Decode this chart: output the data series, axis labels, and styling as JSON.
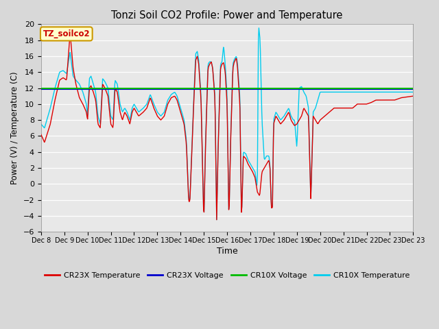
{
  "title": "Tonzi Soil CO2 Profile: Power and Temperature",
  "xlabel": "Time",
  "ylabel": "Power (V) / Temperature (C)",
  "ylim": [
    -6,
    20
  ],
  "yticks": [
    -6,
    -4,
    -2,
    0,
    2,
    4,
    6,
    8,
    10,
    12,
    14,
    16,
    18,
    20
  ],
  "fig_bg_color": "#d8d8d8",
  "plot_bg_color": "#e8e8e8",
  "label_box_text": "TZ_soilco2",
  "label_box_bg": "#ffffcc",
  "label_box_border": "#cc9900",
  "label_box_text_color": "#cc0000",
  "cr23x_temp_color": "#dd0000",
  "cr23x_volt_color": "#0000cc",
  "cr10x_volt_color": "#00bb00",
  "cr10x_temp_color": "#00ccee",
  "cr23x_volt_value": 11.85,
  "cr10x_volt_value": 11.97,
  "legend_entries": [
    "CR23X Temperature",
    "CR23X Voltage",
    "CR10X Voltage",
    "CR10X Temperature"
  ],
  "keypoints_cr23x": [
    [
      0.0,
      6.2
    ],
    [
      0.15,
      5.2
    ],
    [
      0.4,
      7.5
    ],
    [
      0.6,
      10.5
    ],
    [
      0.8,
      13.0
    ],
    [
      0.95,
      13.3
    ],
    [
      1.1,
      13.0
    ],
    [
      1.25,
      19.0
    ],
    [
      1.38,
      14.5
    ],
    [
      1.5,
      12.5
    ],
    [
      1.65,
      10.8
    ],
    [
      1.8,
      10.0
    ],
    [
      1.95,
      9.0
    ],
    [
      2.0,
      8.0
    ],
    [
      2.08,
      12.0
    ],
    [
      2.15,
      12.3
    ],
    [
      2.25,
      11.5
    ],
    [
      2.35,
      10.5
    ],
    [
      2.45,
      7.5
    ],
    [
      2.55,
      7.0
    ],
    [
      2.65,
      12.5
    ],
    [
      2.75,
      12.0
    ],
    [
      2.88,
      11.0
    ],
    [
      3.0,
      7.5
    ],
    [
      3.1,
      7.0
    ],
    [
      3.18,
      12.0
    ],
    [
      3.28,
      11.5
    ],
    [
      3.4,
      9.0
    ],
    [
      3.5,
      8.0
    ],
    [
      3.6,
      9.0
    ],
    [
      3.7,
      8.5
    ],
    [
      3.82,
      7.5
    ],
    [
      3.92,
      9.0
    ],
    [
      4.0,
      9.5
    ],
    [
      4.1,
      9.0
    ],
    [
      4.2,
      8.5
    ],
    [
      4.4,
      9.0
    ],
    [
      4.55,
      9.5
    ],
    [
      4.7,
      10.8
    ],
    [
      4.85,
      9.5
    ],
    [
      5.0,
      8.5
    ],
    [
      5.15,
      8.0
    ],
    [
      5.3,
      8.5
    ],
    [
      5.45,
      10.0
    ],
    [
      5.6,
      10.8
    ],
    [
      5.75,
      11.0
    ],
    [
      5.85,
      10.5
    ],
    [
      5.95,
      9.5
    ],
    [
      6.05,
      8.5
    ],
    [
      6.15,
      7.5
    ],
    [
      6.25,
      5.0
    ],
    [
      6.35,
      -2.2
    ],
    [
      6.4,
      -2.2
    ],
    [
      6.55,
      9.0
    ],
    [
      6.65,
      15.5
    ],
    [
      6.72,
      16.0
    ],
    [
      6.78,
      15.0
    ],
    [
      6.88,
      10.5
    ],
    [
      7.0,
      -4.7
    ],
    [
      7.08,
      5.5
    ],
    [
      7.18,
      14.5
    ],
    [
      7.25,
      15.0
    ],
    [
      7.32,
      15.3
    ],
    [
      7.38,
      14.5
    ],
    [
      7.48,
      10.5
    ],
    [
      7.55,
      -4.7
    ],
    [
      7.62,
      5.0
    ],
    [
      7.72,
      14.5
    ],
    [
      7.78,
      15.0
    ],
    [
      7.85,
      15.2
    ],
    [
      7.92,
      14.0
    ],
    [
      8.0,
      10.0
    ],
    [
      8.08,
      -4.5
    ],
    [
      8.15,
      5.0
    ],
    [
      8.25,
      14.5
    ],
    [
      8.3,
      15.2
    ],
    [
      8.35,
      15.5
    ],
    [
      8.4,
      15.8
    ],
    [
      8.45,
      14.5
    ],
    [
      8.55,
      10.0
    ],
    [
      8.62,
      -4.5
    ],
    [
      8.7,
      3.5
    ],
    [
      8.8,
      3.2
    ],
    [
      8.9,
      2.5
    ],
    [
      9.0,
      2.0
    ],
    [
      9.1,
      1.5
    ],
    [
      9.2,
      0.8
    ],
    [
      9.3,
      -1.0
    ],
    [
      9.4,
      -1.5
    ],
    [
      9.5,
      1.5
    ],
    [
      9.6,
      2.0
    ],
    [
      9.7,
      2.5
    ],
    [
      9.8,
      3.0
    ],
    [
      9.85,
      1.8
    ],
    [
      9.9,
      -3.0
    ],
    [
      9.95,
      -3.0
    ],
    [
      10.0,
      7.5
    ],
    [
      10.1,
      8.5
    ],
    [
      10.2,
      8.0
    ],
    [
      10.3,
      7.5
    ],
    [
      10.45,
      8.0
    ],
    [
      10.55,
      8.5
    ],
    [
      10.65,
      9.0
    ],
    [
      10.75,
      8.0
    ],
    [
      10.85,
      7.5
    ],
    [
      10.9,
      7.3
    ],
    [
      11.0,
      7.5
    ],
    [
      11.1,
      8.0
    ],
    [
      11.2,
      8.5
    ],
    [
      11.3,
      9.5
    ],
    [
      11.4,
      9.0
    ],
    [
      11.5,
      8.5
    ],
    [
      11.6,
      -2.0
    ],
    [
      11.7,
      8.5
    ],
    [
      11.8,
      8.0
    ],
    [
      11.9,
      7.5
    ],
    [
      12.0,
      8.0
    ],
    [
      12.2,
      8.5
    ],
    [
      12.4,
      9.0
    ],
    [
      12.6,
      9.5
    ],
    [
      12.8,
      9.5
    ],
    [
      13.0,
      9.5
    ],
    [
      13.2,
      9.5
    ],
    [
      13.4,
      9.5
    ],
    [
      13.6,
      10.0
    ],
    [
      13.8,
      10.0
    ],
    [
      14.0,
      10.0
    ],
    [
      14.2,
      10.2
    ],
    [
      14.4,
      10.5
    ],
    [
      14.6,
      10.5
    ],
    [
      14.8,
      10.5
    ],
    [
      15.0,
      10.5
    ],
    [
      15.2,
      10.5
    ],
    [
      15.5,
      10.8
    ],
    [
      16.0,
      11.0
    ]
  ],
  "keypoints_cr10x": [
    [
      0.0,
      7.5
    ],
    [
      0.15,
      7.0
    ],
    [
      0.4,
      9.5
    ],
    [
      0.6,
      12.0
    ],
    [
      0.8,
      14.0
    ],
    [
      0.95,
      14.2
    ],
    [
      1.1,
      13.8
    ],
    [
      1.25,
      16.5
    ],
    [
      1.38,
      13.5
    ],
    [
      1.5,
      13.0
    ],
    [
      1.65,
      12.5
    ],
    [
      1.8,
      11.5
    ],
    [
      1.95,
      10.0
    ],
    [
      2.0,
      8.5
    ],
    [
      2.08,
      13.2
    ],
    [
      2.15,
      13.5
    ],
    [
      2.25,
      12.5
    ],
    [
      2.35,
      11.5
    ],
    [
      2.45,
      8.5
    ],
    [
      2.55,
      7.5
    ],
    [
      2.65,
      13.2
    ],
    [
      2.75,
      12.8
    ],
    [
      2.88,
      12.0
    ],
    [
      3.0,
      8.5
    ],
    [
      3.1,
      8.0
    ],
    [
      3.18,
      13.0
    ],
    [
      3.28,
      12.5
    ],
    [
      3.4,
      10.0
    ],
    [
      3.5,
      9.0
    ],
    [
      3.6,
      9.5
    ],
    [
      3.7,
      9.0
    ],
    [
      3.82,
      8.0
    ],
    [
      3.92,
      9.5
    ],
    [
      4.0,
      10.0
    ],
    [
      4.1,
      9.5
    ],
    [
      4.2,
      9.0
    ],
    [
      4.4,
      9.5
    ],
    [
      4.55,
      10.0
    ],
    [
      4.7,
      11.2
    ],
    [
      4.85,
      10.0
    ],
    [
      5.0,
      9.0
    ],
    [
      5.15,
      8.5
    ],
    [
      5.3,
      9.0
    ],
    [
      5.45,
      10.5
    ],
    [
      5.6,
      11.2
    ],
    [
      5.75,
      11.5
    ],
    [
      5.85,
      11.0
    ],
    [
      5.95,
      10.0
    ],
    [
      6.05,
      9.0
    ],
    [
      6.15,
      8.0
    ],
    [
      6.25,
      5.5
    ],
    [
      6.35,
      -2.0
    ],
    [
      6.4,
      -2.0
    ],
    [
      6.55,
      9.5
    ],
    [
      6.65,
      16.3
    ],
    [
      6.72,
      16.6
    ],
    [
      6.78,
      15.5
    ],
    [
      6.88,
      11.0
    ],
    [
      7.0,
      -4.7
    ],
    [
      7.08,
      6.0
    ],
    [
      7.18,
      15.0
    ],
    [
      7.25,
      15.3
    ],
    [
      7.32,
      15.3
    ],
    [
      7.38,
      14.5
    ],
    [
      7.48,
      11.0
    ],
    [
      7.55,
      -4.7
    ],
    [
      7.62,
      5.5
    ],
    [
      7.72,
      15.0
    ],
    [
      7.78,
      15.3
    ],
    [
      7.85,
      17.3
    ],
    [
      7.92,
      15.0
    ],
    [
      8.0,
      11.0
    ],
    [
      8.08,
      -4.5
    ],
    [
      8.15,
      5.5
    ],
    [
      8.25,
      15.0
    ],
    [
      8.3,
      15.5
    ],
    [
      8.35,
      15.8
    ],
    [
      8.4,
      16.0
    ],
    [
      8.45,
      15.0
    ],
    [
      8.55,
      11.0
    ],
    [
      8.62,
      -4.5
    ],
    [
      8.7,
      4.0
    ],
    [
      8.8,
      3.8
    ],
    [
      8.9,
      3.0
    ],
    [
      9.0,
      2.5
    ],
    [
      9.1,
      2.0
    ],
    [
      9.2,
      1.5
    ],
    [
      9.3,
      -0.5
    ],
    [
      9.35,
      20.0
    ],
    [
      9.42,
      18.0
    ],
    [
      9.5,
      8.0
    ],
    [
      9.6,
      3.0
    ],
    [
      9.7,
      3.5
    ],
    [
      9.8,
      3.5
    ],
    [
      9.85,
      2.0
    ],
    [
      9.9,
      -2.8
    ],
    [
      9.95,
      -2.8
    ],
    [
      10.0,
      8.0
    ],
    [
      10.1,
      9.0
    ],
    [
      10.2,
      8.5
    ],
    [
      10.3,
      8.0
    ],
    [
      10.45,
      8.5
    ],
    [
      10.55,
      9.0
    ],
    [
      10.65,
      9.5
    ],
    [
      10.75,
      8.5
    ],
    [
      10.85,
      8.0
    ],
    [
      10.9,
      8.0
    ],
    [
      11.0,
      4.5
    ],
    [
      11.1,
      12.0
    ],
    [
      11.2,
      12.2
    ],
    [
      11.3,
      11.5
    ],
    [
      11.4,
      11.0
    ],
    [
      11.5,
      9.5
    ],
    [
      11.6,
      -2.0
    ],
    [
      11.7,
      9.0
    ],
    [
      11.8,
      9.5
    ],
    [
      11.9,
      10.5
    ],
    [
      12.0,
      11.5
    ],
    [
      12.2,
      11.5
    ],
    [
      12.4,
      11.5
    ],
    [
      12.6,
      11.5
    ],
    [
      12.8,
      11.5
    ],
    [
      13.0,
      11.5
    ],
    [
      13.2,
      11.5
    ],
    [
      13.4,
      11.5
    ],
    [
      13.6,
      11.5
    ],
    [
      13.8,
      11.5
    ],
    [
      14.0,
      11.5
    ],
    [
      14.2,
      11.5
    ],
    [
      14.4,
      11.5
    ],
    [
      14.6,
      11.5
    ],
    [
      14.8,
      11.5
    ],
    [
      15.0,
      11.5
    ],
    [
      15.2,
      11.5
    ],
    [
      15.5,
      11.5
    ],
    [
      16.0,
      11.5
    ]
  ]
}
